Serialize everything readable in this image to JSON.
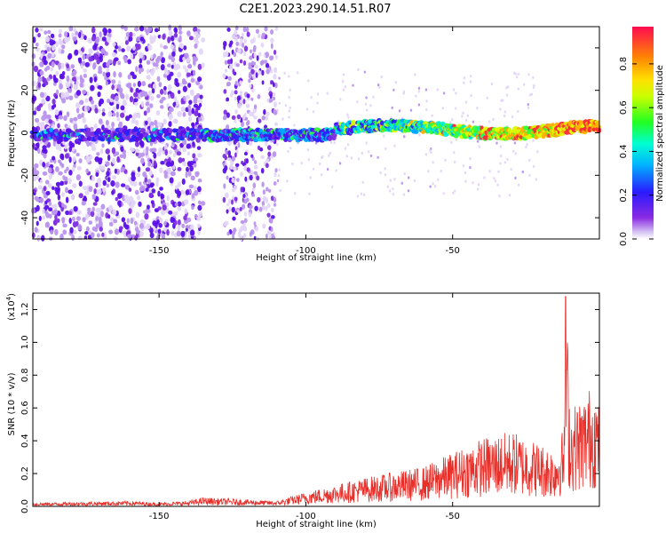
{
  "title": "C2E1.2023.290.14.51.R07",
  "chart_data": [
    {
      "type": "heatmap",
      "xlabel": "Height of straight line (km)",
      "ylabel": "Frequency (Hz)",
      "xlim": [
        -193,
        0
      ],
      "ylim": [
        -50,
        50
      ],
      "xticks": [
        -150,
        -100,
        -50
      ],
      "yticks": [
        -40,
        -20,
        0,
        20,
        40
      ],
      "grid": false,
      "colorbar": {
        "label": "Normalized spectral amplitude",
        "range": [
          0.0,
          0.97
        ],
        "ticks": [
          "0.0",
          "0.2",
          "0.4",
          "0.6",
          "0.8"
        ],
        "colormap": "rainbow"
      },
      "description_features": {
        "carrier_line_frequency_hz": 0,
        "strong_noise_region_km": [
          -193,
          -135
        ],
        "clear_gap_km": [
          -135,
          -128
        ],
        "noise_band_km": [
          -128,
          -110
        ]
      }
    },
    {
      "type": "line",
      "xlabel": "Height of straight line (km)",
      "ylabel": "SNR (10 * v/v)",
      "y_exponent_label": "(x10",
      "y_exponent_power": "4",
      "y_exponent_close": ")",
      "xlim": [
        -193,
        0
      ],
      "ylim": [
        0,
        1.3
      ],
      "xticks": [
        -150,
        -100,
        -50
      ],
      "yticks": [
        "0.0",
        "0.2",
        "0.4",
        "0.6",
        "0.8",
        "1.0",
        "1.2"
      ],
      "grid": false,
      "line_color": "#e8302b",
      "envelope": {
        "x": [
          -193,
          -160,
          -150,
          -140,
          -135,
          -110,
          -100,
          -90,
          -80,
          -70,
          -60,
          -50,
          -40,
          -30,
          -20,
          -15,
          -12,
          -11.5,
          -10,
          -5,
          -2,
          0
        ],
        "y": [
          0.02,
          0.03,
          0.02,
          0.03,
          0.05,
          0.03,
          0.08,
          0.12,
          0.16,
          0.19,
          0.22,
          0.3,
          0.38,
          0.42,
          0.35,
          0.32,
          0.45,
          1.28,
          0.55,
          0.62,
          0.7,
          0.55
        ]
      }
    }
  ]
}
